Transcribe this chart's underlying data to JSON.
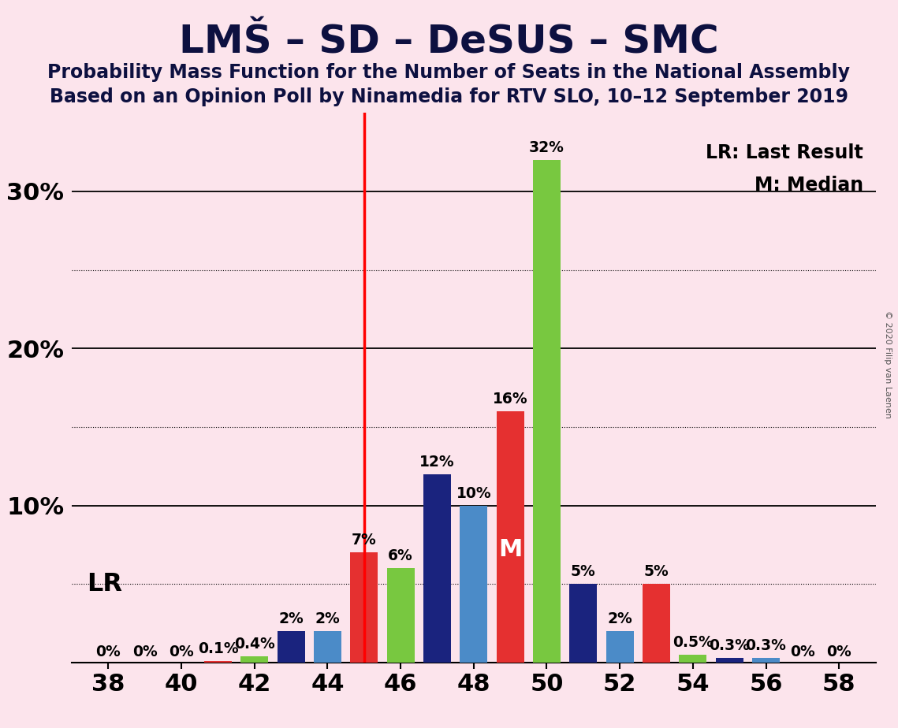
{
  "title": "LMŠ – SD – DeSUS – SMC",
  "subtitle1": "Probability Mass Function for the Number of Seats in the National Assembly",
  "subtitle2": "Based on an Opinion Poll by Ninamedia for RTV SLO, 10–12 September 2019",
  "copyright": "© 2020 Filip van Laenen",
  "bg_color": "#fce4ec",
  "lr_x": 45,
  "xmin": 37,
  "xmax": 59,
  "ymin": 0,
  "ymax": 35,
  "xticks": [
    38,
    40,
    42,
    44,
    46,
    48,
    50,
    52,
    54,
    56,
    58
  ],
  "grid_solid": [
    10,
    20,
    30
  ],
  "grid_dotted": [
    5,
    15,
    25
  ],
  "bar_width": 0.75,
  "colors": {
    "green": "#78c840",
    "darkblue": "#1a237e",
    "lightblue": "#4b8bc8",
    "red": "#e53030"
  },
  "bars": [
    {
      "seat": 38,
      "color": "green",
      "value": 0,
      "label": "0%"
    },
    {
      "seat": 39,
      "color": "darkblue",
      "value": 0,
      "label": "0%"
    },
    {
      "seat": 40,
      "color": "lightblue",
      "value": 0,
      "label": "0%"
    },
    {
      "seat": 41,
      "color": "red",
      "value": 0.1,
      "label": "0.1%"
    },
    {
      "seat": 42,
      "color": "green",
      "value": 0.4,
      "label": "0.4%"
    },
    {
      "seat": 43,
      "color": "darkblue",
      "value": 2,
      "label": "2%"
    },
    {
      "seat": 44,
      "color": "lightblue",
      "value": 2,
      "label": "2%"
    },
    {
      "seat": 45,
      "color": "red",
      "value": 7,
      "label": "7%"
    },
    {
      "seat": 46,
      "color": "green",
      "value": 6,
      "label": "6%"
    },
    {
      "seat": 47,
      "color": "darkblue",
      "value": 12,
      "label": "12%"
    },
    {
      "seat": 48,
      "color": "lightblue",
      "value": 10,
      "label": "10%"
    },
    {
      "seat": 49,
      "color": "red",
      "value": 16,
      "label": "16%",
      "median": true
    },
    {
      "seat": 50,
      "color": "green",
      "value": 32,
      "label": "32%"
    },
    {
      "seat": 51,
      "color": "darkblue",
      "value": 5,
      "label": "5%"
    },
    {
      "seat": 52,
      "color": "lightblue",
      "value": 2,
      "label": "2%"
    },
    {
      "seat": 53,
      "color": "red",
      "value": 5,
      "label": "5%"
    },
    {
      "seat": 54,
      "color": "green",
      "value": 0.5,
      "label": "0.5%"
    },
    {
      "seat": 55,
      "color": "darkblue",
      "value": 0.3,
      "label": "0.3%"
    },
    {
      "seat": 56,
      "color": "lightblue",
      "value": 0.3,
      "label": "0.3%"
    },
    {
      "seat": 57,
      "color": "red",
      "value": 0,
      "label": "0%"
    },
    {
      "seat": 58,
      "color": "green",
      "value": 0,
      "label": "0%"
    }
  ],
  "zero_explicit_seats": [
    38,
    39,
    40,
    57,
    58
  ],
  "lr_label": "LR",
  "lr_legend": "LR: Last Result",
  "m_legend": "M: Median",
  "title_fs": 36,
  "sub_fs": 17,
  "tick_fs": 22,
  "label_fs": 13.5
}
